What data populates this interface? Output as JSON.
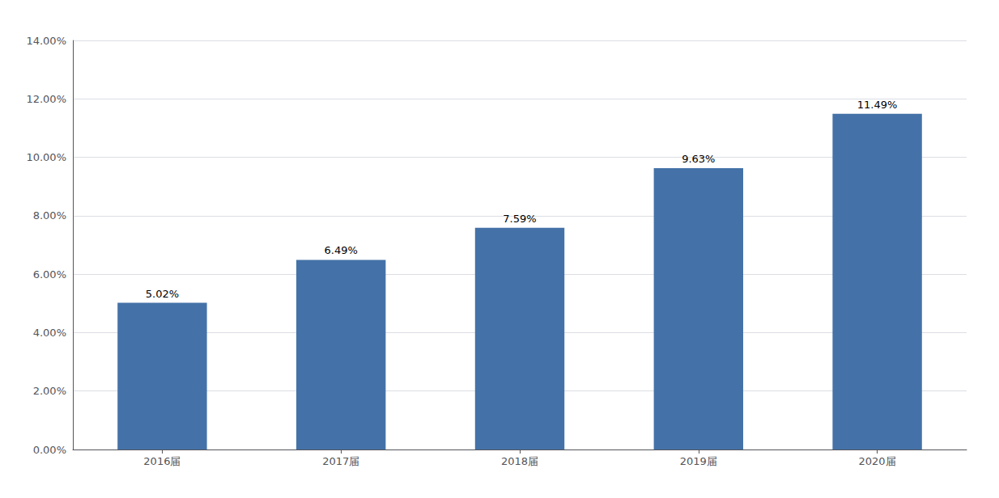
{
  "chart_data": {
    "type": "bar",
    "categories": [
      "2016届",
      "2017届",
      "2018届",
      "2019届",
      "2020届"
    ],
    "values": [
      0.0502,
      0.0649,
      0.0759,
      0.0963,
      0.1149
    ],
    "value_labels": [
      "5.02%",
      "6.49%",
      "7.59%",
      "9.63%",
      "11.49%"
    ],
    "color": "#4472A8",
    "ylim": [
      0,
      0.14
    ],
    "yticks": [
      {
        "value": 0.0,
        "label": "0.00%"
      },
      {
        "value": 0.02,
        "label": "2.00%"
      },
      {
        "value": 0.04,
        "label": "4.00%"
      },
      {
        "value": 0.06,
        "label": "6.00%"
      },
      {
        "value": 0.08,
        "label": "8.00%"
      },
      {
        "value": 0.1,
        "label": "10.00%"
      },
      {
        "value": 0.12,
        "label": "12.00%"
      },
      {
        "value": 0.14,
        "label": "14.00%"
      }
    ],
    "grid": true,
    "data_labels": true
  }
}
